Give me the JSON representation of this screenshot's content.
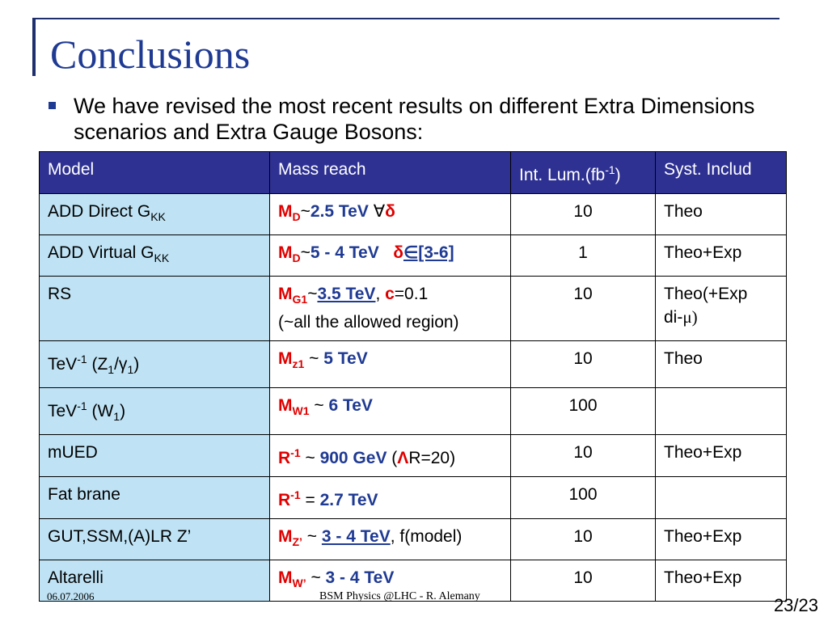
{
  "slide": {
    "title": "Conclusions",
    "bullet": "We have revised the most recent results on different Extra Dimensions scenarios and Extra Gauge Bosons:"
  },
  "table": {
    "headers": [
      "Model",
      "Mass reach",
      "Int. Lum.(fb",
      "-1",
      ")",
      "Syst. Includ"
    ],
    "rows": [
      {
        "model": "ADD Direct G",
        "model_sub": "KK",
        "mass_sym": "M",
        "mass_sub": "D",
        "sep": "~",
        "mass_val": "2.5 TeV",
        "extra1": " ∀",
        "extra2": "δ",
        "extra3": "",
        "lumi": "10",
        "syst": "Theo"
      },
      {
        "model": "ADD Virtual G",
        "model_sub": "KK",
        "mass_sym": "M",
        "mass_sub": "D",
        "sep": "~",
        "mass_val": "5 - 4 TeV",
        "extra1": "   ",
        "extra2": "δ",
        "extra3": "∈[3-6]",
        "lumi": "1",
        "syst": "Theo+Exp"
      },
      {
        "model": "RS",
        "mass_sym": "M",
        "mass_sub": "G1",
        "sep": "~",
        "mass_val": "3.5 TeV",
        "tail_a": ", ",
        "c_sym": "c",
        "tail_b": "=0.1",
        "line2": "(~all the allowed region)",
        "lumi": "10",
        "syst": "Theo(+Exp",
        "syst2": "di-",
        "syst3": "μ)"
      },
      {
        "model_a": "TeV",
        "model_sup": "-1",
        "model_b": " (Z",
        "model_s1": "1",
        "model_c": "/γ",
        "model_s2": "1",
        "model_d": ")",
        "mass_sym": "M",
        "mass_sub": "z1",
        "sep": " ~ ",
        "mass_val": "5 TeV",
        "lumi": "10",
        "syst": "Theo"
      },
      {
        "model_a": "TeV",
        "model_sup": "-1",
        "model_b": " (W",
        "model_s1": "1",
        "model_d": ")",
        "mass_sym": "M",
        "mass_sub": "W1",
        "sep": " ~ ",
        "mass_val": "6 TeV",
        "lumi": "100",
        "syst": ""
      },
      {
        "model": "mUED",
        "mass_sym": "R",
        "mass_sup": "-1",
        "sep": " ~ ",
        "mass_val": "900 GeV",
        "tail_a": " (",
        "lam": "Λ",
        "tail_b": "R=20)",
        "lumi": "10",
        "syst": "Theo+Exp"
      },
      {
        "model": "Fat brane",
        "mass_sym": "R",
        "mass_sup": "-1",
        "sep": " = ",
        "mass_val": "2.7 TeV",
        "lumi": "100",
        "syst": ""
      },
      {
        "model": "GUT,SSM,(A)LR  Z’",
        "mass_sym": "M",
        "mass_sub": "Z’",
        "sep": " ~ ",
        "mass_val": "3 - 4 TeV",
        "tail_a": ", f(model)",
        "lumi": "10",
        "syst": "Theo+Exp"
      },
      {
        "model": "Altarelli",
        "mass_sym": "M",
        "mass_sub": "W’",
        "sep": " ~ ",
        "mass_val": "3 - 4 TeV",
        "lumi": "10",
        "syst": "Theo+Exp"
      }
    ]
  },
  "footer": {
    "date": "06.07.2006",
    "center": "BSM Physics @LHC -  R. Alemany",
    "page": "23/23"
  },
  "colors": {
    "accent": "#1f3a93",
    "header_bg": "#2e3192",
    "model_bg": "#bfe3f5",
    "highlight": "#e00000"
  }
}
